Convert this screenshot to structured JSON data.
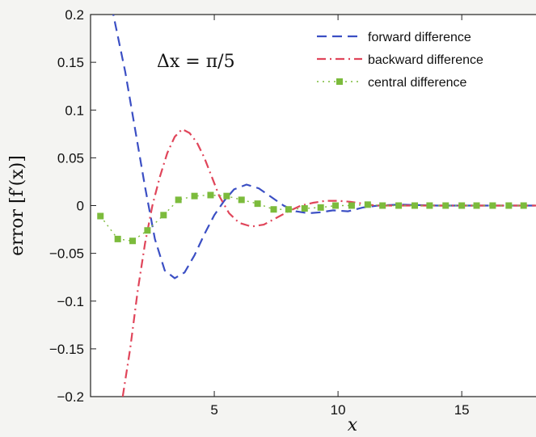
{
  "chart_data": {
    "type": "line",
    "title": "",
    "xlabel": "x",
    "ylabel": "error [f′(x)]",
    "annotation": "Δx = π/5",
    "xlim": [
      0,
      18
    ],
    "ylim": [
      -0.2,
      0.2
    ],
    "x_ticks": [
      5,
      10,
      15
    ],
    "x_tick_labels": [
      "5",
      "10",
      "15"
    ],
    "y_ticks": [
      0.2,
      0.15,
      0.1,
      0.05,
      0,
      -0.05,
      -0.1,
      -0.15,
      -0.2
    ],
    "y_tick_labels": [
      "0.2",
      "0.15",
      "0.1",
      "0.05",
      "0",
      "−0.05",
      "−0.1",
      "−0.15",
      "−0.2"
    ],
    "legend_position": "top-right",
    "series": [
      {
        "name": "forward difference",
        "color": "#3b4fc4",
        "style": "dashed",
        "x": [
          0.6,
          1.0,
          1.4,
          1.8,
          2.2,
          2.6,
          3.0,
          3.4,
          3.8,
          4.2,
          4.6,
          5.0,
          5.4,
          5.8,
          6.3,
          6.8,
          7.3,
          7.8,
          8.3,
          8.8,
          9.3,
          9.8,
          10.4,
          11.0,
          11.6,
          12.5,
          14,
          16,
          18
        ],
        "y": [
          0.24,
          0.19,
          0.14,
          0.08,
          0.02,
          -0.035,
          -0.068,
          -0.076,
          -0.07,
          -0.052,
          -0.03,
          -0.01,
          0.005,
          0.017,
          0.022,
          0.018,
          0.009,
          0.0,
          -0.006,
          -0.008,
          -0.007,
          -0.005,
          -0.006,
          -0.002,
          0.0,
          0.001,
          0.0,
          0.0,
          0.0
        ]
      },
      {
        "name": "backward difference",
        "color": "#e0455a",
        "style": "dashdot",
        "x": [
          1.3,
          1.6,
          1.9,
          2.2,
          2.5,
          2.8,
          3.1,
          3.4,
          3.7,
          4.0,
          4.3,
          4.6,
          4.9,
          5.2,
          5.6,
          6.0,
          6.5,
          7.0,
          7.5,
          8.0,
          8.5,
          9.0,
          9.5,
          10.0,
          10.5,
          11.0,
          11.5,
          12.5,
          14,
          16,
          18
        ],
        "y": [
          -0.2,
          -0.15,
          -0.09,
          -0.04,
          0.0,
          0.03,
          0.055,
          0.072,
          0.08,
          0.076,
          0.066,
          0.05,
          0.03,
          0.01,
          -0.008,
          -0.018,
          -0.022,
          -0.02,
          -0.013,
          -0.006,
          0.0,
          0.003,
          0.005,
          0.005,
          0.004,
          0.002,
          0.0,
          0.0,
          0.0,
          0.0,
          0.0
        ]
      },
      {
        "name": "central difference",
        "color": "#7cbb3c",
        "style": "dotted-squares",
        "x": [
          0.4,
          1.1,
          1.7,
          2.3,
          2.95,
          3.55,
          4.2,
          4.85,
          5.5,
          6.1,
          6.75,
          7.4,
          8.0,
          8.65,
          9.3,
          9.9,
          10.55,
          11.2,
          11.8,
          12.45,
          13.1,
          13.7,
          14.35,
          15.0,
          15.6,
          16.25,
          16.9,
          17.5
        ],
        "y": [
          -0.011,
          -0.035,
          -0.037,
          -0.026,
          -0.01,
          0.006,
          0.01,
          0.011,
          0.01,
          0.006,
          0.002,
          -0.004,
          -0.004,
          -0.003,
          -0.002,
          0.0,
          0.0,
          0.001,
          0.0,
          0.0,
          0.0,
          0.0,
          0.0,
          0.0,
          0.0,
          0.0,
          0.0,
          0.0
        ]
      }
    ]
  }
}
